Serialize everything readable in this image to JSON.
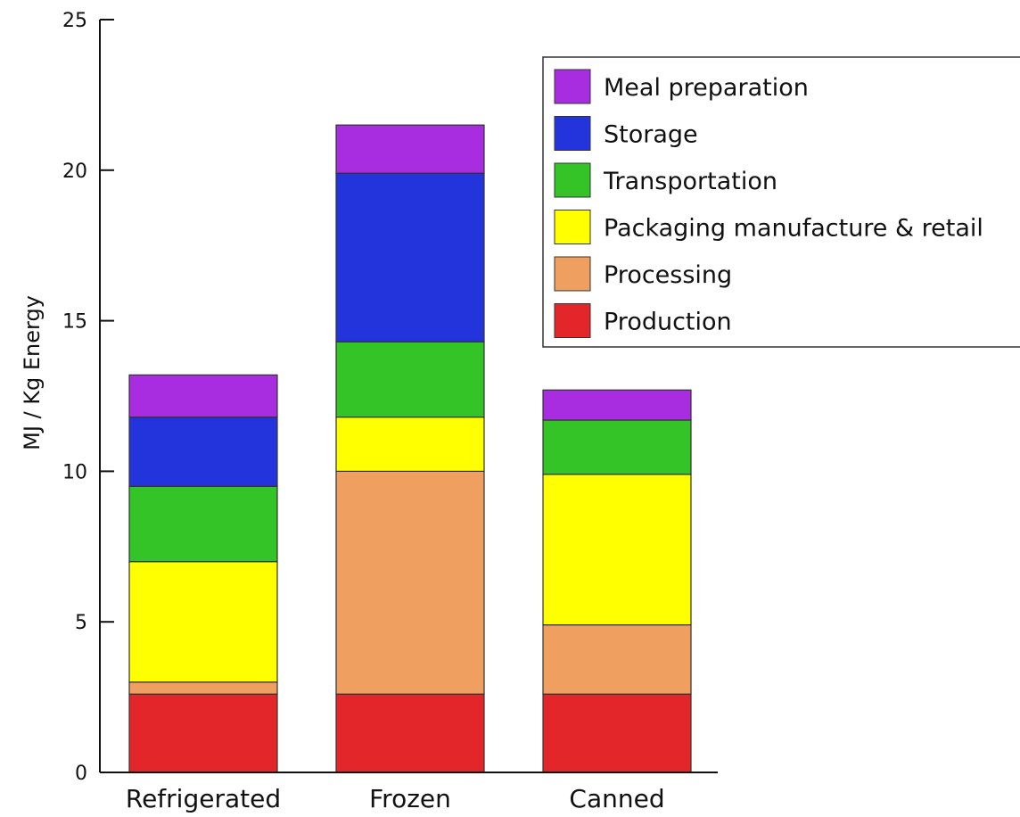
{
  "chart_data": {
    "type": "bar",
    "stacked": true,
    "title": "",
    "xlabel": "",
    "ylabel": "MJ / Kg Energy",
    "ylim": [
      0,
      25
    ],
    "yticks": [
      0,
      5,
      10,
      15,
      20,
      25
    ],
    "grid": false,
    "legend_position": "top-right",
    "categories": [
      "Refrigerated",
      "Frozen",
      "Canned"
    ],
    "series": [
      {
        "name": "Production",
        "color": "#e3262a",
        "values": [
          2.6,
          2.6,
          2.6
        ]
      },
      {
        "name": "Processing",
        "color": "#efa060",
        "values": [
          0.4,
          7.4,
          2.3
        ]
      },
      {
        "name": "Packaging manufacture & retail",
        "color": "#ffff00",
        "values": [
          4.0,
          1.8,
          5.0
        ]
      },
      {
        "name": "Transportation",
        "color": "#35c427",
        "values": [
          2.5,
          2.5,
          1.8
        ]
      },
      {
        "name": "Storage",
        "color": "#2334dc",
        "values": [
          2.3,
          5.6,
          0
        ]
      },
      {
        "name": "Meal preparation",
        "color": "#a82ce0",
        "values": [
          1.4,
          1.6,
          1.0
        ]
      }
    ]
  }
}
